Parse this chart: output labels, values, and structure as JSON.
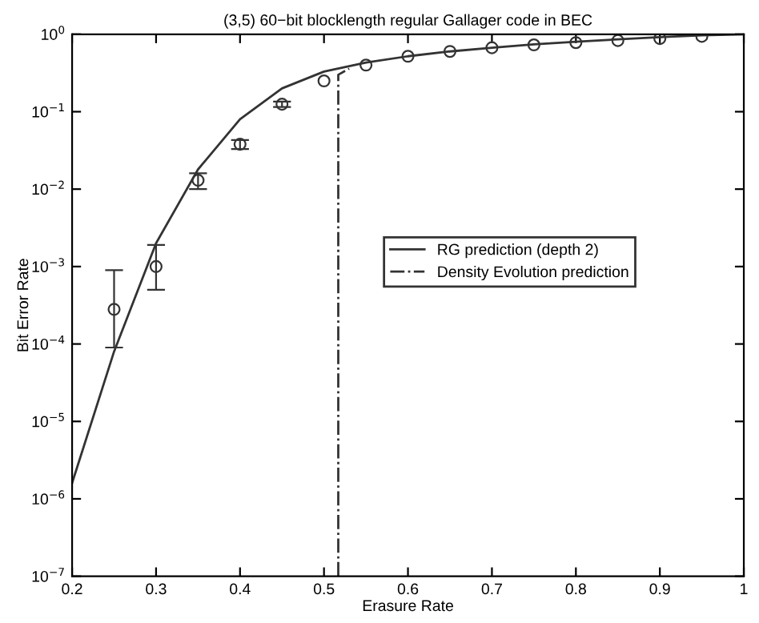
{
  "chart_data": {
    "type": "line",
    "title": "(3,5) 60−bit blocklength regular Gallager code in BEC",
    "xlabel": "Erasure Rate",
    "ylabel": "Bit Error Rate",
    "log": "y",
    "grid": false,
    "legend": "right",
    "xlim": [
      0.2,
      1
    ],
    "xticks": [
      0.2,
      0.3,
      0.4,
      0.5,
      0.6,
      0.7,
      0.8,
      0.9,
      1
    ],
    "ylim": [
      1e-07,
      1
    ],
    "yticks": [
      {
        "value": 1e-07,
        "label": "10$^{−7}$"
      },
      {
        "value": 1e-06,
        "label": "10$^{−6}$"
      },
      {
        "value": 1e-05,
        "label": "10$^{−5}$"
      },
      {
        "value": 0.0001,
        "label": "10$^{−4}$"
      },
      {
        "value": 0.001,
        "label": "10$^{−3}$"
      },
      {
        "value": 0.01,
        "label": "10$^{−2}$"
      },
      {
        "value": 0.1,
        "label": "10$^{−1}$"
      },
      {
        "value": 1,
        "label": "10$^{0}$"
      }
    ],
    "series": [
      {
        "name": "RG prediction (depth 2)",
        "color": "#333333",
        "line_style": "solid",
        "marker": "none",
        "x": [
          0.2,
          0.25,
          0.3,
          0.35,
          0.4,
          0.45,
          0.5,
          0.55,
          0.6,
          0.65,
          0.7,
          0.75,
          0.8,
          0.85,
          0.9,
          0.95,
          1.0
        ],
        "values": [
          1.6e-06,
          8e-05,
          0.002,
          0.018,
          0.08,
          0.2,
          0.33,
          0.43,
          0.52,
          0.6,
          0.67,
          0.74,
          0.8,
          0.86,
          0.92,
          0.97,
          1.0
        ]
      },
      {
        "name": "Density Evolution prediction",
        "color": "#333333",
        "line_style": "dashdot",
        "marker": "none",
        "x": [
          0.517,
          0.517,
          0.53
        ],
        "values": [
          1e-07,
          0.3,
          0.36
        ]
      },
      {
        "type": "scatter",
        "color": "#333333",
        "marker": "circle",
        "x": [
          0.25,
          0.3,
          0.35,
          0.4,
          0.45,
          0.5,
          0.55,
          0.6,
          0.65,
          0.7,
          0.75,
          0.8,
          0.85,
          0.9,
          0.95
        ],
        "values": [
          0.00028,
          0.001,
          0.013,
          0.038,
          0.125,
          0.25,
          0.4,
          0.52,
          0.6,
          0.67,
          0.73,
          0.78,
          0.83,
          0.88,
          0.94
        ],
        "errors": [
          [
            9e-05,
            0.0009
          ],
          [
            0.0005,
            0.0019
          ],
          [
            0.01,
            0.016
          ],
          [
            0.033,
            0.043
          ],
          [
            0.115,
            0.135
          ],
          null,
          null,
          null,
          null,
          null,
          null,
          null,
          null,
          null,
          null
        ]
      }
    ]
  }
}
